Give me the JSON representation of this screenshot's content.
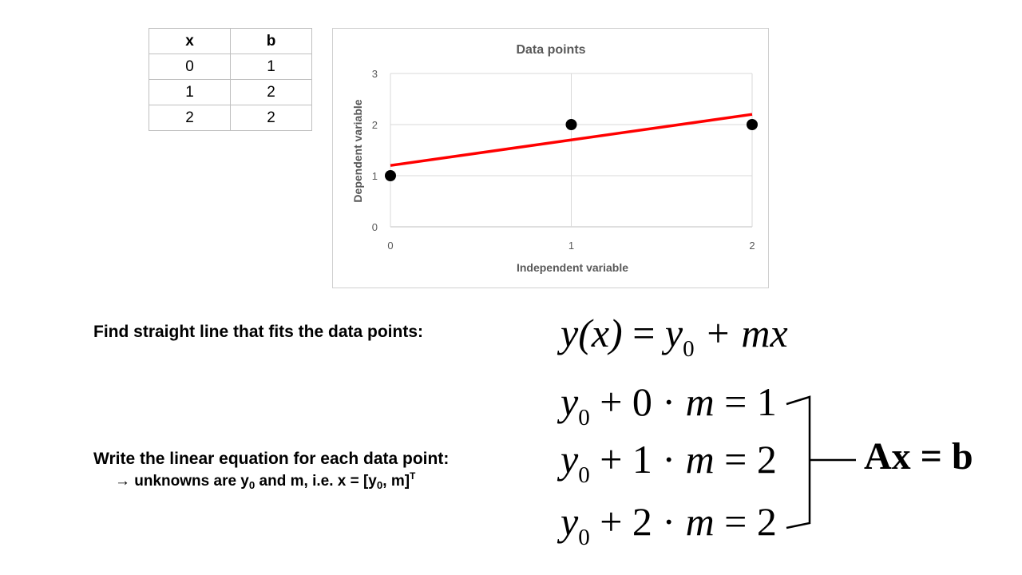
{
  "table": {
    "headers": [
      "x",
      "b"
    ],
    "rows": [
      [
        "0",
        "1"
      ],
      [
        "1",
        "2"
      ],
      [
        "2",
        "2"
      ]
    ]
  },
  "chart_data": {
    "type": "scatter",
    "title": "Data points",
    "xlabel": "Independent variable",
    "ylabel": "Dependent variable",
    "x": [
      0,
      1,
      2
    ],
    "y": [
      1,
      2,
      2
    ],
    "xlim": [
      0,
      2
    ],
    "ylim": [
      0,
      3
    ],
    "xticks": [
      0,
      1,
      2
    ],
    "yticks": [
      0,
      1,
      2,
      3
    ],
    "grid": true,
    "fit_line": {
      "x": [
        0,
        2
      ],
      "y": [
        1.2,
        2.2
      ],
      "color": "#ff0000"
    },
    "point_color": "#000000"
  },
  "text": {
    "fit_caption": "Find straight line that fits the data points:",
    "write_caption": "Write the linear equation for each data point:",
    "unknowns_prefix": "→ unknowns are y",
    "unknowns_sub0": "0",
    "unknowns_mid": " and m, i.e. x = [y",
    "unknowns_sub1": "0",
    "unknowns_end": ", m]",
    "unknowns_sup": "T"
  },
  "math": {
    "model_lhs": "y",
    "model_paren": "(x)",
    "model_eq": " = ",
    "model_y0": "y",
    "model_sub": "0",
    "model_rest": " + mx",
    "rows": [
      {
        "y": "y",
        "sub": "0",
        "mid": " + 0 · ",
        "m": "m",
        "rhs": " = 1"
      },
      {
        "y": "y",
        "sub": "0",
        "mid": " + 1 · ",
        "m": "m",
        "rhs": " = 2"
      },
      {
        "y": "y",
        "sub": "0",
        "mid": " + 2 · ",
        "m": "m",
        "rhs": " = 2"
      }
    ],
    "matrix_eq": "Ax = b"
  }
}
